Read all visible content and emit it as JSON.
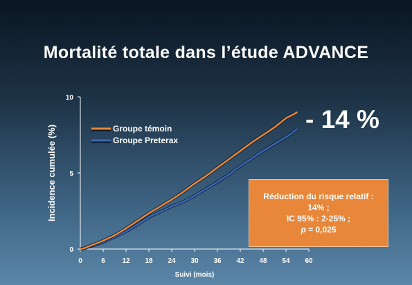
{
  "slide": {
    "title": "Mortalité totale dans l’étude ADVANCE",
    "reduction_label": "- 14 %",
    "result_box": {
      "line1": "Réduction du risque relatif :",
      "line2": "14% ;",
      "line3": "IC 95% : 2-25% ;",
      "line4_prefix": "p",
      "line4_value": "= 0,025"
    }
  },
  "colors": {
    "background_top": "#0a1522",
    "background_bottom": "#5b86a8",
    "series_control": "#e8873a",
    "series_treatment": "#3a66b5",
    "result_box": "#e8873a",
    "text": "#ffffff"
  },
  "chart_data": {
    "type": "line",
    "xlabel": "Suivi (mois)",
    "ylabel": "Incidence cumulée (%)",
    "xlim": [
      0,
      60
    ],
    "ylim": [
      0,
      10
    ],
    "xticks": [
      0,
      6,
      12,
      18,
      24,
      30,
      36,
      42,
      48,
      54,
      60
    ],
    "yticks": [
      0,
      5,
      10
    ],
    "grid": false,
    "legend_position": "top-left",
    "series": [
      {
        "name": "Groupe témoin",
        "color": "#e8873a",
        "x": [
          0,
          1,
          3,
          6,
          9,
          12,
          15,
          18,
          21,
          24,
          27,
          30,
          33,
          36,
          39,
          42,
          45,
          48,
          51,
          54,
          56,
          57
        ],
        "y": [
          0,
          0.05,
          0.25,
          0.55,
          0.9,
          1.35,
          1.85,
          2.35,
          2.8,
          3.25,
          3.75,
          4.3,
          4.8,
          5.35,
          5.9,
          6.45,
          7.0,
          7.5,
          8.0,
          8.6,
          8.85,
          9.0
        ]
      },
      {
        "name": "Groupe Preterax",
        "color": "#3a66b5",
        "x": [
          0,
          1,
          3,
          6,
          9,
          12,
          15,
          18,
          21,
          24,
          27,
          30,
          33,
          36,
          39,
          42,
          45,
          48,
          51,
          54,
          56,
          57
        ],
        "y": [
          0,
          0.04,
          0.2,
          0.45,
          0.8,
          1.15,
          1.6,
          2.1,
          2.45,
          2.8,
          3.1,
          3.5,
          3.95,
          4.4,
          4.9,
          5.45,
          5.95,
          6.45,
          6.9,
          7.35,
          7.7,
          7.9
        ]
      }
    ]
  }
}
